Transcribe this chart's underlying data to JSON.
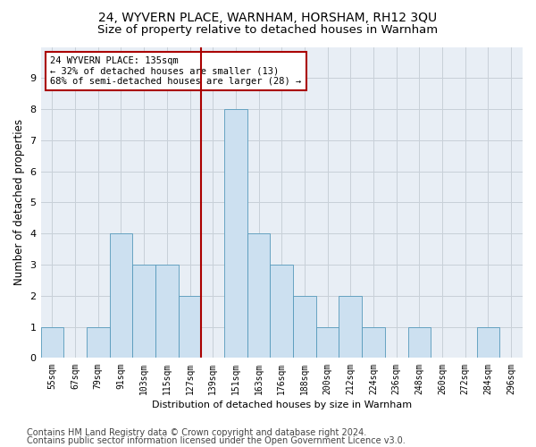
{
  "title": "24, WYVERN PLACE, WARNHAM, HORSHAM, RH12 3QU",
  "subtitle": "Size of property relative to detached houses in Warnham",
  "xlabel": "Distribution of detached houses by size in Warnham",
  "ylabel": "Number of detached properties",
  "categories": [
    "55sqm",
    "67sqm",
    "79sqm",
    "91sqm",
    "103sqm",
    "115sqm",
    "127sqm",
    "139sqm",
    "151sqm",
    "163sqm",
    "176sqm",
    "188sqm",
    "200sqm",
    "212sqm",
    "224sqm",
    "236sqm",
    "248sqm",
    "260sqm",
    "272sqm",
    "284sqm",
    "296sqm"
  ],
  "values": [
    1,
    0,
    1,
    4,
    3,
    3,
    2,
    0,
    8,
    4,
    3,
    2,
    1,
    2,
    1,
    0,
    1,
    0,
    0,
    1,
    0
  ],
  "bar_color": "#cce0f0",
  "bar_edge_color": "#5599bb",
  "vline_color": "#aa0000",
  "annotation_line1": "24 WYVERN PLACE: 135sqm",
  "annotation_line2": "← 32% of detached houses are smaller (13)",
  "annotation_line3": "68% of semi-detached houses are larger (28) →",
  "annotation_box_color": "#ffffff",
  "annotation_box_edge": "#aa0000",
  "ylim": [
    0,
    10
  ],
  "yticks": [
    0,
    1,
    2,
    3,
    4,
    5,
    6,
    7,
    8,
    9,
    10
  ],
  "footer1": "Contains HM Land Registry data © Crown copyright and database right 2024.",
  "footer2": "Contains public sector information licensed under the Open Government Licence v3.0.",
  "bg_color": "#ffffff",
  "plot_bg_color": "#e8eef5",
  "grid_color": "#c8d0d8",
  "title_fontsize": 10,
  "subtitle_fontsize": 9.5,
  "axis_fontsize": 8,
  "ylabel_fontsize": 8.5,
  "tick_fontsize": 7,
  "footer_fontsize": 7,
  "vline_x_index": 7
}
